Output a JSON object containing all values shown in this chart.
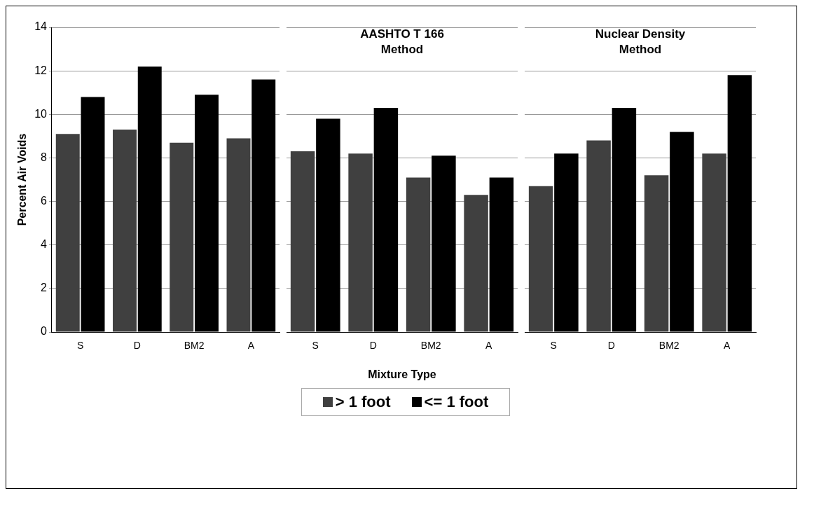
{
  "chart_data": [
    {
      "type": "bar",
      "categories": [
        "S",
        "D",
        "BM2",
        "A"
      ],
      "ylabel": "Percent Air Voids",
      "ylim": [
        0,
        14
      ],
      "yticks": [
        0,
        2,
        4,
        6,
        8,
        10,
        12,
        14
      ],
      "grid": "y",
      "legend": false,
      "series": [
        {
          "color": "#404040",
          "values": [
            9.1,
            9.3,
            8.7,
            8.9
          ]
        },
        {
          "color": "#000000",
          "values": [
            10.8,
            12.2,
            10.9,
            11.6
          ]
        }
      ]
    },
    {
      "type": "bar",
      "title": "AASHTO T 166 Method",
      "categories": [
        "S",
        "D",
        "BM2",
        "A"
      ],
      "xlabel": "Mixture Type",
      "ylim": [
        0,
        14
      ],
      "yticks": [
        0,
        2,
        4,
        6,
        8,
        10,
        12,
        14
      ],
      "grid": "y",
      "legend": "bottom",
      "tick_labels": "x",
      "series": [
        {
          "name": "> 1 foot",
          "color": "#404040",
          "values": [
            8.3,
            8.2,
            7.1,
            6.3
          ]
        },
        {
          "name": "<= 1 foot",
          "color": "#000000",
          "values": [
            9.8,
            10.3,
            8.1,
            7.1
          ]
        }
      ]
    },
    {
      "type": "bar",
      "title": "Nuclear Density Method",
      "categories": [
        "S",
        "D",
        "BM2",
        "A"
      ],
      "ylim": [
        0,
        14
      ],
      "yticks": [
        0,
        2,
        4,
        6,
        8,
        10,
        12,
        14
      ],
      "grid": "y",
      "legend": false,
      "tick_labels": "x",
      "series": [
        {
          "color": "#404040",
          "values": [
            6.7,
            8.8,
            7.2,
            8.2
          ]
        },
        {
          "color": "#000000",
          "values": [
            8.2,
            10.3,
            9.2,
            11.8
          ]
        }
      ]
    }
  ]
}
